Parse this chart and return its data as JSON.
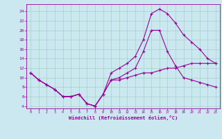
{
  "title": "",
  "xlabel": "Windchill (Refroidissement éolien,°C)",
  "ylabel": "",
  "bg_color": "#cbe8f0",
  "line_color": "#990099",
  "xlim": [
    -0.5,
    23.5
  ],
  "ylim": [
    3.5,
    25.5
  ],
  "xticks": [
    0,
    1,
    2,
    3,
    4,
    5,
    6,
    7,
    8,
    9,
    10,
    11,
    12,
    13,
    14,
    15,
    16,
    17,
    18,
    19,
    20,
    21,
    22,
    23
  ],
  "yticks": [
    4,
    6,
    8,
    10,
    12,
    14,
    16,
    18,
    20,
    22,
    24
  ],
  "line1_x": [
    0,
    1,
    2,
    3,
    4,
    5,
    6,
    7,
    8,
    9,
    10,
    11,
    12,
    13,
    14,
    15,
    16,
    17,
    18,
    19,
    20,
    21,
    22,
    23
  ],
  "line1_y": [
    11,
    9.5,
    8.5,
    7.5,
    6.0,
    6.0,
    6.5,
    4.5,
    4.0,
    6.5,
    11.0,
    12.0,
    13.0,
    14.5,
    18.0,
    23.5,
    24.5,
    23.5,
    21.5,
    19.0,
    17.5,
    16.0,
    14.0,
    13.0
  ],
  "line2_x": [
    0,
    1,
    2,
    3,
    4,
    5,
    6,
    7,
    8,
    9,
    10,
    11,
    12,
    13,
    14,
    15,
    16,
    17,
    18,
    19,
    20,
    21,
    22,
    23
  ],
  "line2_y": [
    11,
    9.5,
    8.5,
    7.5,
    6.0,
    6.0,
    6.5,
    4.5,
    4.0,
    6.5,
    9.5,
    10.0,
    11.0,
    12.0,
    15.5,
    20.0,
    20.0,
    15.5,
    12.5,
    10.0,
    9.5,
    9.0,
    8.5,
    8.0
  ],
  "line3_x": [
    0,
    1,
    2,
    3,
    4,
    5,
    6,
    7,
    8,
    9,
    10,
    11,
    12,
    13,
    14,
    15,
    16,
    17,
    18,
    19,
    20,
    21,
    22,
    23
  ],
  "line3_y": [
    11,
    9.5,
    8.5,
    7.5,
    6.0,
    6.0,
    6.5,
    4.5,
    4.0,
    6.5,
    9.5,
    9.5,
    10.0,
    10.5,
    11.0,
    11.0,
    11.5,
    12.0,
    12.0,
    12.5,
    13.0,
    13.0,
    13.0,
    13.0
  ]
}
